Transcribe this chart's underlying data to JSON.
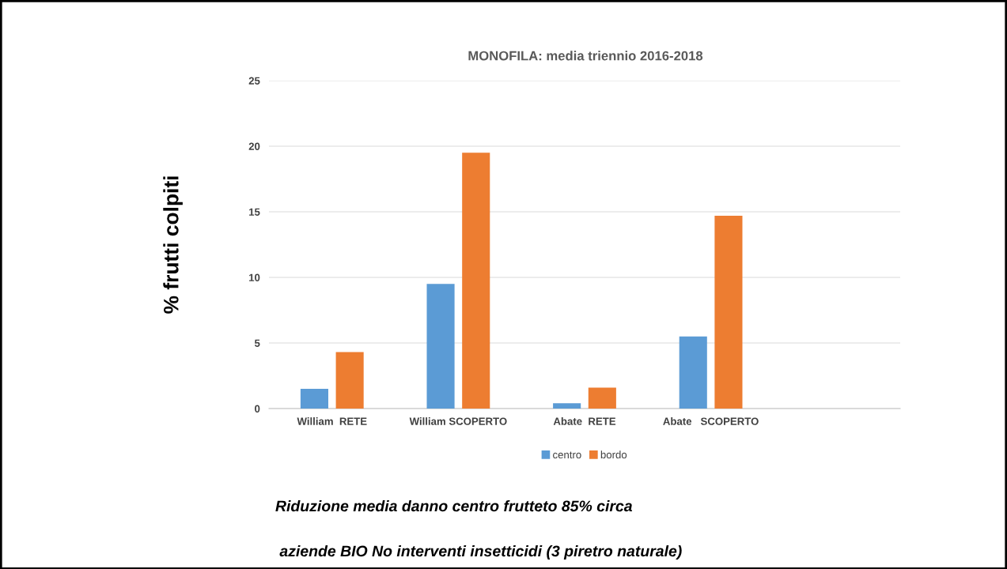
{
  "chart_data": {
    "type": "bar",
    "title": "MONOFILA: media triennio 2016-2018",
    "ylabel": "% frutti colpiti",
    "categories": [
      "William  RETE",
      "William SCOPERTO",
      "Abate  RETE",
      "Abate   SCOPERTO",
      null
    ],
    "series": [
      {
        "name": "centro",
        "color": "#5b9bd5",
        "values": [
          1.5,
          9.5,
          0.4,
          5.5,
          null
        ]
      },
      {
        "name": "bordo",
        "color": "#ed7d31",
        "values": [
          4.3,
          19.5,
          1.6,
          14.7,
          null
        ]
      }
    ],
    "ylim": [
      0,
      25
    ],
    "yticks": [
      0,
      5,
      10,
      15,
      20,
      25
    ],
    "grid": "y",
    "legend": "bottom",
    "annotations": [
      "Riduzione media danno centro frutteto 85% circa",
      " aziende BIO No interventi insetticidi (3 piretro naturale)"
    ]
  }
}
